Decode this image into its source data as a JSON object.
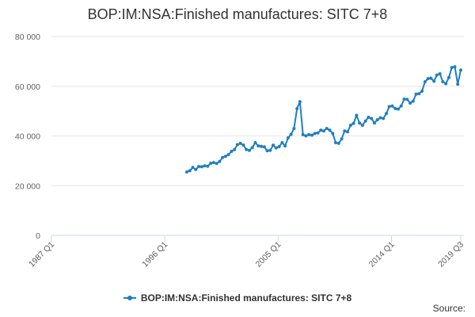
{
  "chart_data": {
    "type": "line",
    "title": "BOP:IM:NSA:Finished manufactures: SITC 7+8",
    "xlabel": "",
    "ylabel": "",
    "x_tick_labels": [
      "1987 Q1",
      "1996 Q1",
      "2005 Q1",
      "2014 Q1",
      "2019 Q3"
    ],
    "y_tick_labels": [
      "0",
      "20 000",
      "40 000",
      "60 000",
      "80 000"
    ],
    "y_ticks": [
      0,
      20000,
      40000,
      60000,
      80000
    ],
    "ylim": [
      0,
      80000
    ],
    "x_range": [
      "1987 Q1",
      "2019 Q3"
    ],
    "grid": true,
    "legend_position": "bottom-center",
    "series": [
      {
        "name": "BOP:IM:NSA:Finished manufactures: SITC 7+8",
        "color": "#1f7fbf",
        "points": [
          [
            "1997 Q4",
            25500
          ],
          [
            "1998 Q1",
            26000
          ],
          [
            "1998 Q2",
            27300
          ],
          [
            "1998 Q3",
            26500
          ],
          [
            "1998 Q4",
            27700
          ],
          [
            "1999 Q1",
            27600
          ],
          [
            "1999 Q2",
            28000
          ],
          [
            "1999 Q3",
            27800
          ],
          [
            "1999 Q4",
            29000
          ],
          [
            "2000 Q1",
            29300
          ],
          [
            "2000 Q2",
            28900
          ],
          [
            "2000 Q3",
            29700
          ],
          [
            "2000 Q4",
            31300
          ],
          [
            "2001 Q1",
            31800
          ],
          [
            "2001 Q2",
            32500
          ],
          [
            "2001 Q3",
            33800
          ],
          [
            "2001 Q4",
            34500
          ],
          [
            "2002 Q1",
            36500
          ],
          [
            "2002 Q2",
            37000
          ],
          [
            "2002 Q3",
            36300
          ],
          [
            "2002 Q4",
            34500
          ],
          [
            "2003 Q1",
            34200
          ],
          [
            "2003 Q2",
            35300
          ],
          [
            "2003 Q3",
            37300
          ],
          [
            "2003 Q4",
            36000
          ],
          [
            "2004 Q1",
            35800
          ],
          [
            "2004 Q2",
            35600
          ],
          [
            "2004 Q3",
            34000
          ],
          [
            "2004 Q4",
            34200
          ],
          [
            "2005 Q1",
            36300
          ],
          [
            "2005 Q2",
            35200
          ],
          [
            "2005 Q3",
            35700
          ],
          [
            "2005 Q4",
            37300
          ],
          [
            "2006 Q1",
            36000
          ],
          [
            "2006 Q2",
            39200
          ],
          [
            "2006 Q3",
            40600
          ],
          [
            "2006 Q4",
            43000
          ],
          [
            "2007 Q1",
            51000
          ],
          [
            "2007 Q2",
            53800
          ],
          [
            "2007 Q3",
            40500
          ],
          [
            "2007 Q4",
            40000
          ],
          [
            "2008 Q1",
            40500
          ],
          [
            "2008 Q2",
            40300
          ],
          [
            "2008 Q3",
            41000
          ],
          [
            "2008 Q4",
            41200
          ],
          [
            "2009 Q1",
            42300
          ],
          [
            "2009 Q2",
            42000
          ],
          [
            "2009 Q3",
            43000
          ],
          [
            "2009 Q4",
            42300
          ],
          [
            "2010 Q1",
            41000
          ],
          [
            "2010 Q2",
            37300
          ],
          [
            "2010 Q3",
            37000
          ],
          [
            "2010 Q4",
            38800
          ],
          [
            "2011 Q1",
            42000
          ],
          [
            "2011 Q2",
            41700
          ],
          [
            "2011 Q3",
            44300
          ],
          [
            "2011 Q4",
            45000
          ],
          [
            "2012 Q1",
            48300
          ],
          [
            "2012 Q2",
            45200
          ],
          [
            "2012 Q3",
            44300
          ],
          [
            "2012 Q4",
            46000
          ],
          [
            "2013 Q1",
            47500
          ],
          [
            "2013 Q2",
            47000
          ],
          [
            "2013 Q3",
            45200
          ],
          [
            "2013 Q4",
            46500
          ],
          [
            "2014 Q1",
            47300
          ],
          [
            "2014 Q2",
            47000
          ],
          [
            "2014 Q3",
            49000
          ],
          [
            "2014 Q4",
            51800
          ],
          [
            "2015 Q1",
            52000
          ],
          [
            "2015 Q2",
            51000
          ],
          [
            "2015 Q3",
            50800
          ],
          [
            "2015 Q4",
            52000
          ],
          [
            "2016 Q1",
            54800
          ],
          [
            "2016 Q2",
            54700
          ],
          [
            "2016 Q3",
            53200
          ],
          [
            "2016 Q4",
            54000
          ],
          [
            "2017 Q1",
            56800
          ],
          [
            "2017 Q2",
            57000
          ],
          [
            "2017 Q3",
            58000
          ],
          [
            "2017 Q4",
            61800
          ],
          [
            "2018 Q1",
            63000
          ],
          [
            "2018 Q2",
            63200
          ],
          [
            "2018 Q3",
            62000
          ],
          [
            "2018 Q4",
            64500
          ],
          [
            "2019 Q1",
            65000
          ],
          [
            "2019 Q1",
            61800
          ],
          [
            "2019 Q1",
            61000
          ],
          [
            "2019 Q2",
            63500
          ],
          [
            "2019 Q2",
            67500
          ],
          [
            "2019 Q3",
            67800
          ],
          [
            "2019 Q3",
            60800
          ],
          [
            "2019 Q3",
            66500
          ]
        ]
      }
    ]
  },
  "legend": {
    "label": "BOP:IM:NSA:Finished manufactures: SITC 7+8"
  },
  "source": {
    "label": "Source:"
  },
  "colors": {
    "series": "#1f7fbf",
    "grid": "#e6e6e6",
    "axis": "#ccd6eb",
    "text": "#333333",
    "tick_text": "#606060"
  }
}
